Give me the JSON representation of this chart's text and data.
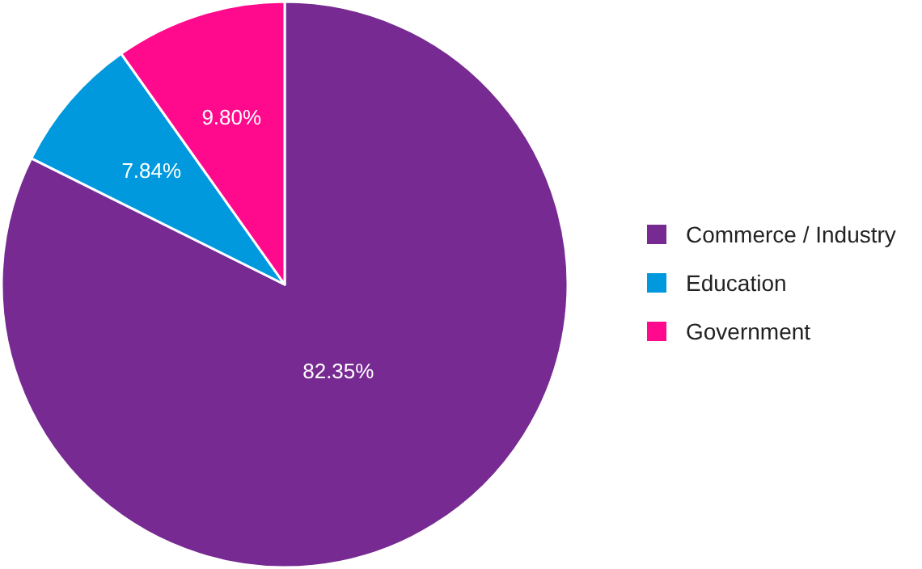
{
  "chart_data": {
    "type": "pie",
    "categories": [
      "Commerce / Industry",
      "Education",
      "Government"
    ],
    "values": [
      82.35,
      7.84,
      9.8
    ],
    "colors": [
      "#772a92",
      "#0099dd",
      "#ff0a8c"
    ],
    "value_labels": [
      "82.35%",
      "7.84%",
      "9.80%"
    ],
    "legend": "right"
  }
}
